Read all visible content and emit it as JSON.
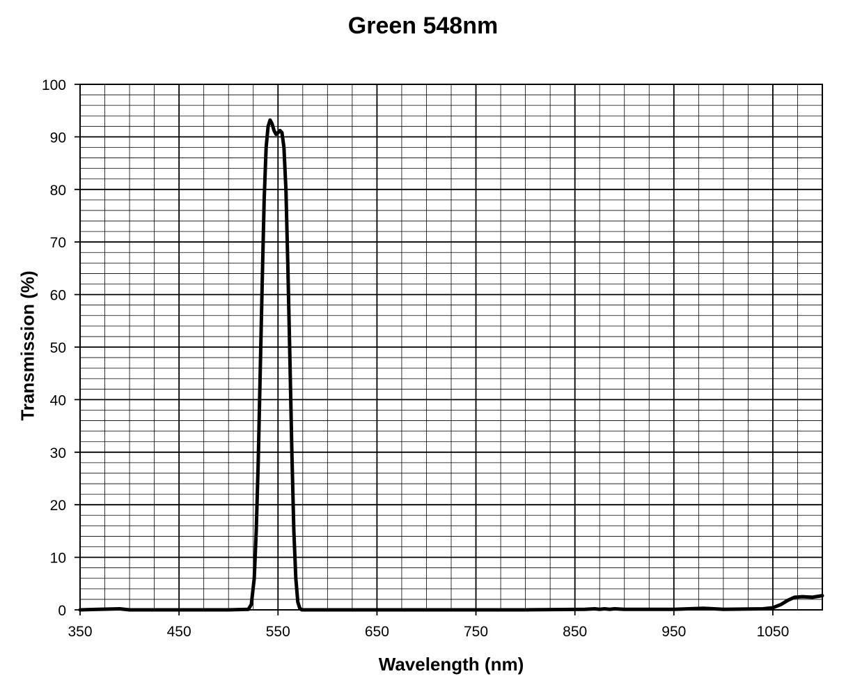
{
  "chart_data": {
    "type": "line",
    "title": "Green 548nm",
    "xlabel": "Wavelength (nm)",
    "ylabel": "Transmission (%)",
    "xlim": [
      350,
      1100
    ],
    "ylim": [
      0,
      100
    ],
    "x_ticks": [
      350,
      450,
      550,
      650,
      750,
      850,
      950,
      1050
    ],
    "y_ticks": [
      0,
      10,
      20,
      30,
      40,
      50,
      60,
      70,
      80,
      90,
      100
    ],
    "x_minor_step": 25,
    "y_minor_step": 2,
    "grid": true,
    "legend": "none",
    "line_color": "#000000",
    "series": [
      {
        "x": [
          350,
          390,
          400,
          450,
          500,
          520,
          523,
          526,
          528,
          530,
          532,
          534,
          536,
          538,
          540,
          542,
          544,
          546,
          548,
          550,
          552,
          554,
          556,
          558,
          560,
          562,
          564,
          566,
          568,
          570,
          572,
          574,
          576,
          600,
          700,
          800,
          860,
          870,
          875,
          880,
          885,
          890,
          900,
          950,
          980,
          1000,
          1040,
          1050,
          1058,
          1065,
          1072,
          1080,
          1090,
          1100
        ],
        "y": [
          0,
          0.2,
          0,
          0,
          0,
          0.1,
          1,
          6,
          15,
          28,
          45,
          62,
          78,
          88,
          92,
          93.2,
          92.5,
          91.2,
          90.5,
          90.8,
          91.2,
          90.8,
          88,
          80,
          65,
          48,
          30,
          15,
          6,
          1.5,
          0.3,
          0,
          0,
          0,
          0,
          0,
          0.1,
          0.2,
          0.1,
          0.2,
          0.1,
          0.2,
          0.1,
          0.1,
          0.3,
          0.1,
          0.2,
          0.4,
          1.0,
          1.8,
          2.4,
          2.5,
          2.4,
          2.7
        ]
      }
    ]
  }
}
